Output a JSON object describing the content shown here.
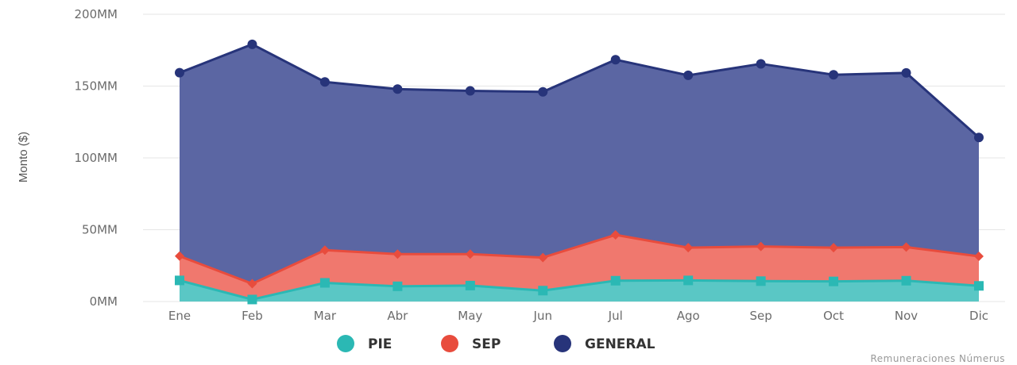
{
  "chart_data": {
    "type": "area",
    "stacked": true,
    "categories": [
      "Ene",
      "Feb",
      "Mar",
      "Abr",
      "May",
      "Jun",
      "Jul",
      "Ago",
      "Sep",
      "Oct",
      "Nov",
      "Dic"
    ],
    "ylabel": "Monto ($)",
    "ylim": [
      0,
      200
    ],
    "yticks": [
      0,
      50,
      100,
      150,
      200
    ],
    "ytick_labels": [
      "0MM",
      "50MM",
      "100MM",
      "150MM",
      "200MM"
    ],
    "grid": true,
    "legend_position": "bottom-center",
    "series": [
      {
        "name": "PIE",
        "color": "#2bb8b4",
        "fill": "#5ac7c5",
        "marker": "square",
        "values": [
          14.7,
          1.4,
          13.0,
          10.6,
          11.1,
          7.6,
          14.5,
          14.7,
          14.2,
          14.0,
          14.5,
          10.9
        ]
      },
      {
        "name": "SEP",
        "color": "#e84c3d",
        "fill": "#f0786e",
        "marker": "diamond",
        "values": [
          31.6,
          12.4,
          35.8,
          33.0,
          33.0,
          30.6,
          46.4,
          37.5,
          38.3,
          37.5,
          37.9,
          31.5
        ]
      },
      {
        "name": "GENERAL",
        "color": "#27347a",
        "fill": "#5b66a3",
        "marker": "circle",
        "values": [
          159.3,
          179.1,
          152.9,
          147.9,
          146.7,
          146.0,
          168.4,
          157.5,
          165.5,
          157.9,
          159.2,
          114.2
        ]
      }
    ],
    "credit": "Remuneraciones Númerus"
  }
}
